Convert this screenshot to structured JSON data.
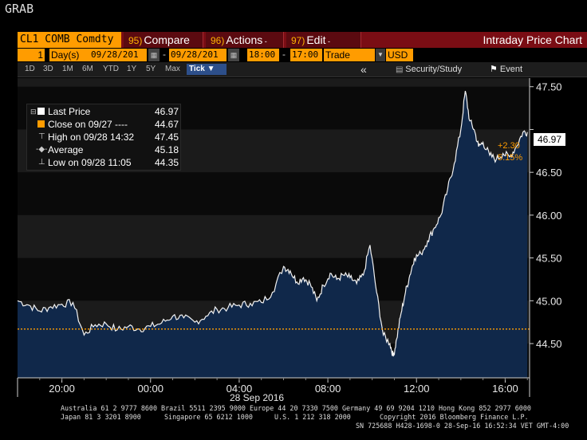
{
  "window_title": "GRAB",
  "toolbar": {
    "security": "CL1 COMB Comdty",
    "compare": {
      "num": "95)",
      "label": "Compare"
    },
    "actions": {
      "num": "96)",
      "label": "Actions"
    },
    "edit": {
      "num": "97)",
      "label": "Edit"
    },
    "chart_title": "Intraday Price Chart"
  },
  "settings": {
    "period_count": "1",
    "period_unit": "Day(s)",
    "start_date": "09/28/201",
    "end_date": "09/28/201",
    "start_time": "18:00",
    "end_time": "17:00",
    "field": "Trade",
    "currency": "USD"
  },
  "timeframes": [
    "1D",
    "3D",
    "1M",
    "6M",
    "YTD",
    "1Y",
    "5Y",
    "Max"
  ],
  "tick_dropdown": "Tick ▼",
  "right_buttons": {
    "collapse": "«",
    "security_study": "Security/Study",
    "event": "Event"
  },
  "legend": [
    {
      "label": "Last Price",
      "value": "46.97"
    },
    {
      "label": "Close on 09/27 ----",
      "value": "44.67"
    },
    {
      "label": "High on 09/28 14:32",
      "value": "47.45"
    },
    {
      "label": "Average",
      "value": "45.18"
    },
    {
      "label": "Low on 09/28 11:05",
      "value": "44.35"
    }
  ],
  "last_price_tag": "46.97",
  "change_abs": "+2.30",
  "change_pct": "5.15%",
  "date_label": "28 Sep 2016",
  "footer": {
    "line1": "Australia 61 2 9777 8600 Brazil 5511 2395 9000 Europe 44 20 7330 7500 Germany 49 69 9204 1210 Hong Kong 852 2977 6000",
    "line2a": "Japan 81 3 3201 8900",
    "line2b": "Singapore 65 6212 1000",
    "line2c": "U.S. 1 212 318 2000",
    "line2d": "Copyright 2016 Bloomberg Finance L.P.",
    "line3": "SN 725688 H428-1698-0 28-Sep-16 16:52:34 VET  GMT-4:00"
  },
  "colors": {
    "accent": "#ff9c00",
    "toolbar": "#7a0d14",
    "area_fill": "#10284a",
    "reference_line": "#ff9c00"
  },
  "chart_data": {
    "type": "area",
    "ylim": [
      44.1,
      47.6
    ],
    "yticks": [
      44.5,
      45.0,
      45.5,
      46.0,
      46.5,
      47.0,
      47.5
    ],
    "ytick_labels": [
      "44.50",
      "45.00",
      "45.50",
      "46.00",
      "46.50",
      "",
      "47.50"
    ],
    "xticks": [
      20,
      24,
      28,
      32,
      36,
      40
    ],
    "xtick_labels": [
      "20:00",
      "00:00",
      "04:00",
      "08:00",
      "12:00",
      "16:00"
    ],
    "xlim": [
      18,
      41.1
    ],
    "reference_line": 44.67,
    "x": [
      18.0,
      18.5,
      19.0,
      19.5,
      20.0,
      20.5,
      21.0,
      21.5,
      22.0,
      22.5,
      23.0,
      23.5,
      24.0,
      24.5,
      25.0,
      25.5,
      26.0,
      26.5,
      27.0,
      27.5,
      28.0,
      28.5,
      29.0,
      29.5,
      30.0,
      30.3,
      30.6,
      30.9,
      31.2,
      31.5,
      31.8,
      32.1,
      32.4,
      32.7,
      33.0,
      33.3,
      33.6,
      33.9,
      34.2,
      34.5,
      34.8,
      34.95,
      35.1,
      35.3,
      35.5,
      35.7,
      35.9,
      36.2,
      36.5,
      36.8,
      37.1,
      37.4,
      37.7,
      38.0,
      38.2,
      38.4,
      38.6,
      38.8,
      39.0,
      39.3,
      39.6,
      39.9,
      40.2,
      40.5,
      40.8,
      41.0
    ],
    "y": [
      45.0,
      44.95,
      44.88,
      44.93,
      44.96,
      44.98,
      44.6,
      44.72,
      44.73,
      44.66,
      44.7,
      44.67,
      44.7,
      44.74,
      44.82,
      44.8,
      44.75,
      44.82,
      44.9,
      44.92,
      44.95,
      44.97,
      44.98,
      45.1,
      45.4,
      45.35,
      45.22,
      45.27,
      45.2,
      45.0,
      45.18,
      45.32,
      45.25,
      45.3,
      45.27,
      45.2,
      45.3,
      45.65,
      45.1,
      44.6,
      44.5,
      44.35,
      44.55,
      44.85,
      45.1,
      45.3,
      45.5,
      45.55,
      45.7,
      45.85,
      46.0,
      46.3,
      46.6,
      47.0,
      47.45,
      47.1,
      47.0,
      46.8,
      46.85,
      46.7,
      46.65,
      46.72,
      46.68,
      46.8,
      46.97,
      46.97
    ],
    "series": [
      {
        "values": "y"
      }
    ]
  }
}
